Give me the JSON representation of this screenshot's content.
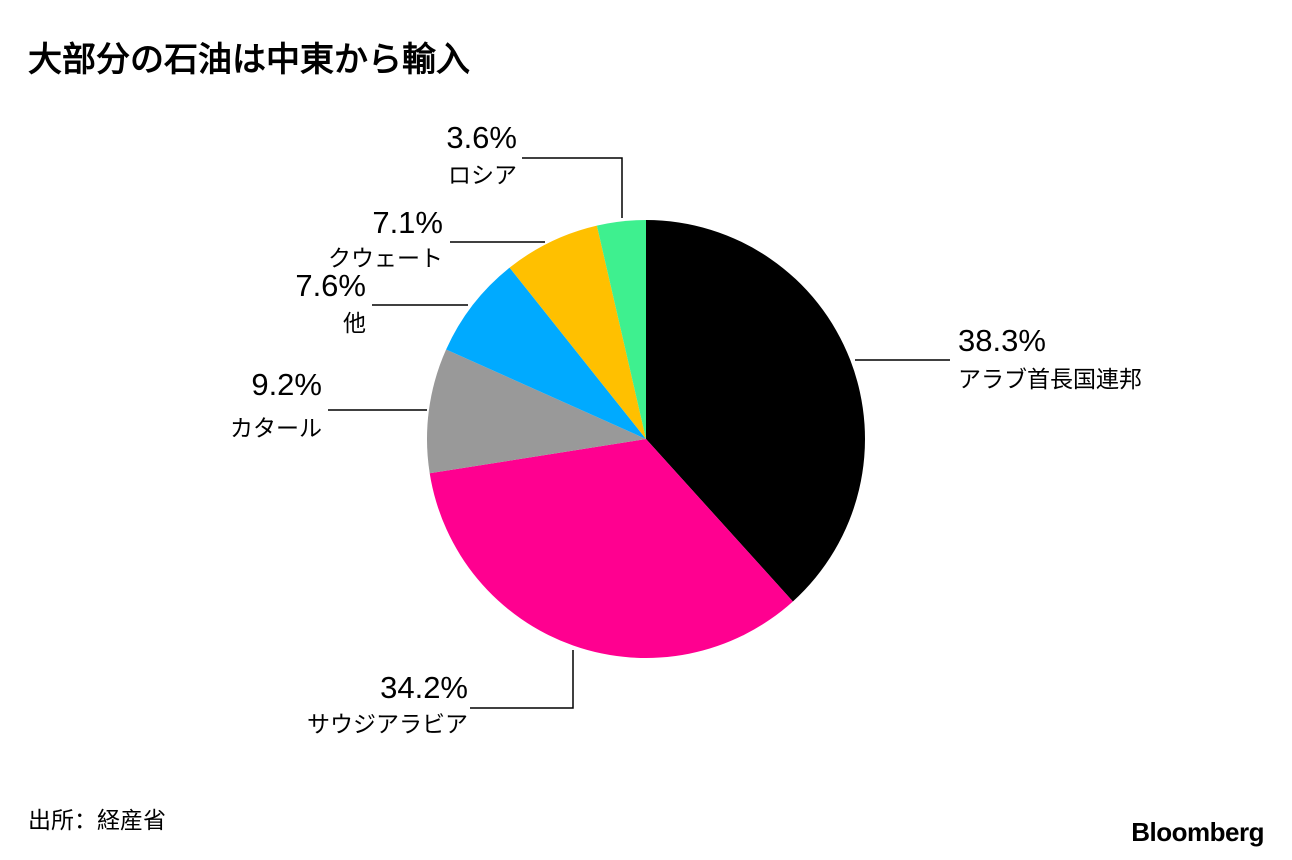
{
  "chart_data": {
    "type": "pie",
    "title": "大部分の石油は中東から輸入",
    "categories": [
      "アラブ首長国連邦",
      "サウジアラビア",
      "カタール",
      "他",
      "クウェート",
      "ロシア"
    ],
    "values": [
      38.3,
      34.2,
      9.2,
      7.6,
      7.1,
      3.6
    ],
    "value_labels": [
      "38.3%",
      "34.2%",
      "9.2%",
      "7.6%",
      "7.1%",
      "3.6%"
    ],
    "colors": [
      "#000000",
      "#ff0090",
      "#999999",
      "#00aaff",
      "#ffc000",
      "#3ef08f"
    ],
    "source": "出所：経産省",
    "brand": "Bloomberg"
  }
}
